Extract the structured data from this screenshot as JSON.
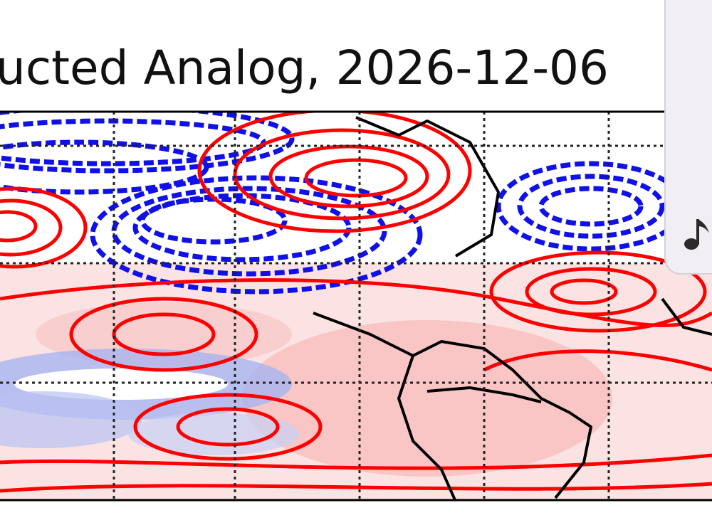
{
  "header": {
    "title": "ucted Analog, 2026-12-06"
  }
}
